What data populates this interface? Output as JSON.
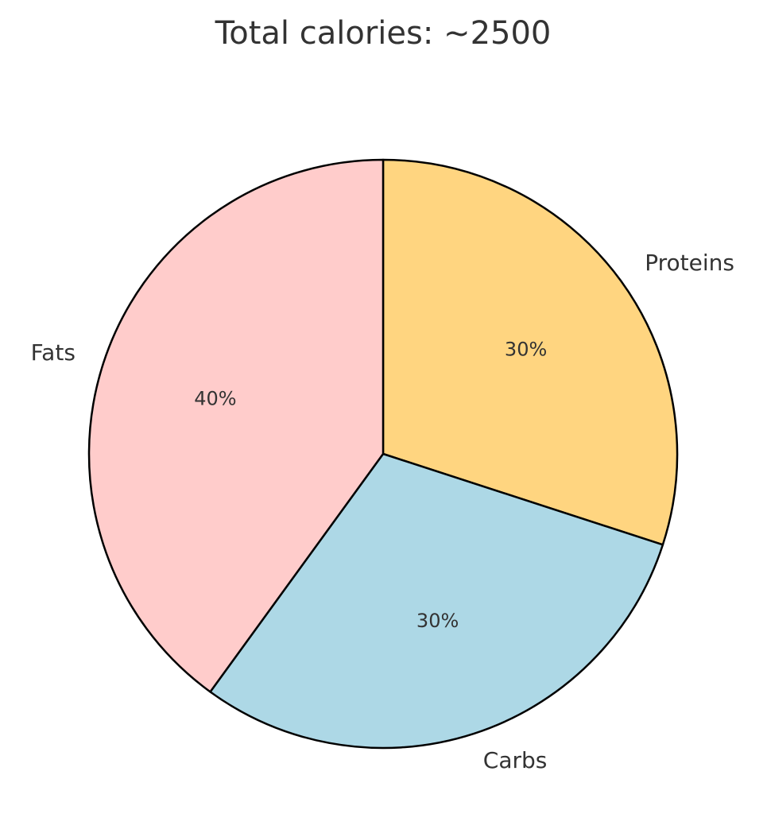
{
  "chart_data": {
    "type": "pie",
    "title": "Total calories: ~2500",
    "slices": [
      {
        "label": "Proteins",
        "value": 30,
        "pct_label": "30%",
        "color": "#ffd580"
      },
      {
        "label": "Carbs",
        "value": 30,
        "pct_label": "30%",
        "color": "#add8e6"
      },
      {
        "label": "Fats",
        "value": 40,
        "pct_label": "40%",
        "color": "#ffcccb"
      }
    ],
    "start_angle_deg": 90,
    "direction": "clockwise",
    "edge_color": "#000000",
    "legend": "none"
  }
}
